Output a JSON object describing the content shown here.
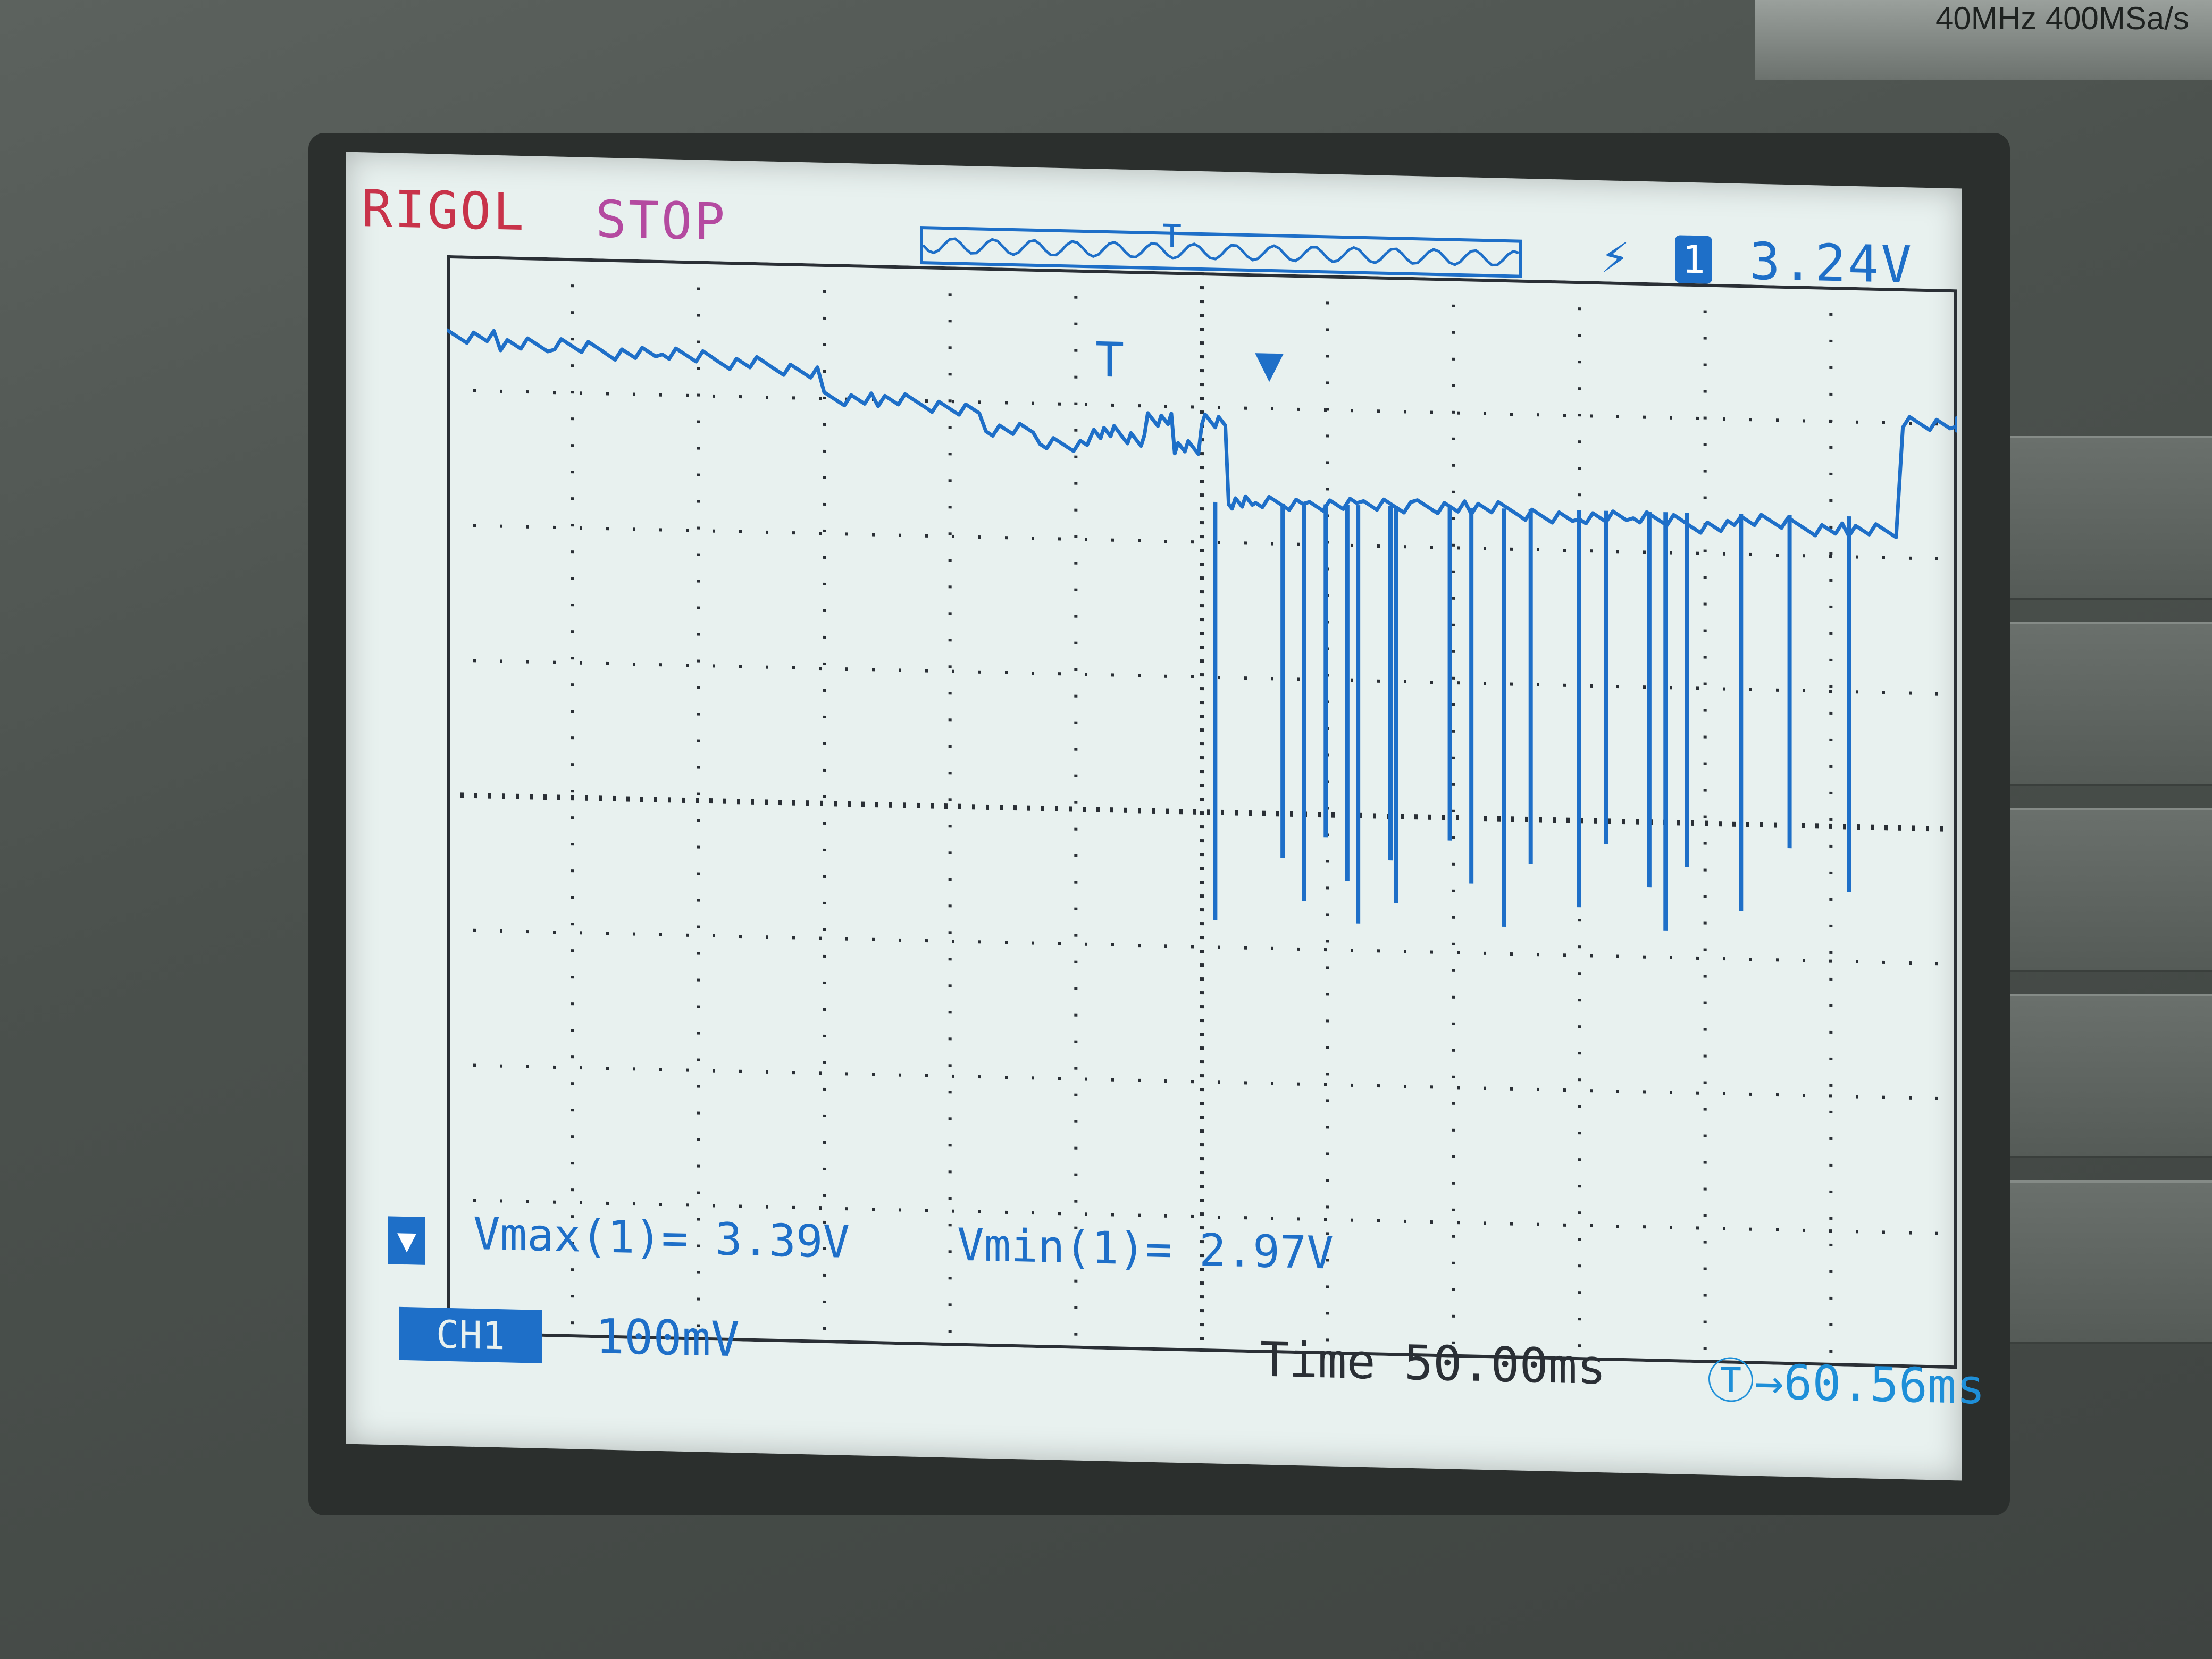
{
  "device": {
    "model_label": "40MHz 400MSa/s"
  },
  "header": {
    "brand": "RIGOL",
    "run_state": "STOP",
    "memory_marker": "T",
    "trigger_edge_icon": "rising-edge-icon",
    "channel_badge": "1",
    "trigger_level": "3.24V"
  },
  "measurements": {
    "vmax": "Vmax(1)= 3.39V",
    "vmin": "Vmin(1)= 2.97V"
  },
  "footer": {
    "channel_label": "CH1",
    "volts_per_div": "100mV",
    "time_base": "Time 50.00ms",
    "trigger_offset": "Ⓣ→60.56ms"
  },
  "colors": {
    "screen_bg": "#e8f1ef",
    "trace": "#1e6fc8",
    "brand": "#c8334a",
    "stop": "#b44aa0",
    "grid": "#2a2f35"
  },
  "chart_data": {
    "type": "line",
    "grid": true,
    "x": [
      0,
      20,
      40,
      60,
      80,
      100,
      120,
      140,
      160,
      180,
      200,
      220,
      240,
      250,
      260,
      270,
      280,
      290,
      300,
      320,
      340,
      360,
      380,
      400,
      420,
      440,
      460,
      480,
      500,
      520,
      540,
      560
    ],
    "series": [
      {
        "values": [
          3.39,
          3.385,
          3.385,
          3.38,
          3.38,
          3.375,
          3.37,
          3.35,
          3.35,
          3.345,
          3.33,
          3.32,
          3.33,
          3.325,
          3.34,
          3.32,
          3.34,
          3.28,
          3.28,
          3.28,
          3.28,
          3.28,
          3.28,
          3.275,
          3.275,
          3.275,
          3.27,
          3.275,
          3.27,
          3.27,
          3.35,
          3.35
        ]
      }
    ],
    "dips_ms": [
      285,
      310,
      318,
      326,
      334,
      338,
      350,
      352,
      372,
      380,
      392,
      402,
      420,
      430,
      446,
      452,
      460,
      480,
      498,
      520
    ],
    "dip_floor": 2.97
  }
}
